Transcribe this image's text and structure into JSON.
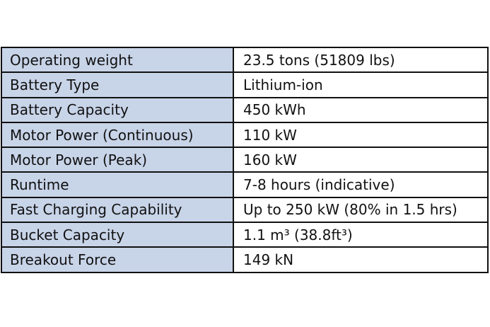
{
  "table": {
    "rows": [
      [
        "Operating weight",
        "23.5 tons (51809 lbs)"
      ],
      [
        "Battery Type",
        "Lithium-ion"
      ],
      [
        "Battery Capacity",
        "450 kWh"
      ],
      [
        "Motor Power (Continuous)",
        "110 kW"
      ],
      [
        "Motor Power (Peak)",
        "160 kW"
      ],
      [
        "Runtime",
        "7-8 hours (indicative)"
      ],
      [
        "Fast Charging Capability",
        "Up to 250 kW (80% in 1.5 hrs)"
      ],
      [
        "Bucket Capacity",
        "1.1 m³ (38.8ft³)"
      ],
      [
        "Breakout Force",
        "149 kN"
      ]
    ]
  }
}
